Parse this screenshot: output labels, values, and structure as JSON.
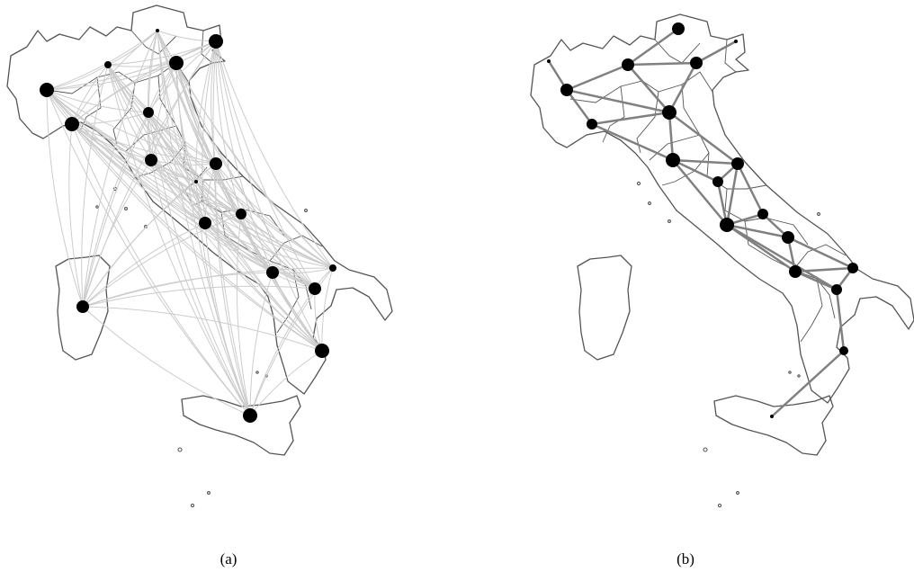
{
  "panels": [
    {
      "id": "a",
      "caption": "(a)"
    },
    {
      "id": "b",
      "caption": "(b)"
    }
  ],
  "colors": {
    "node": "#000000",
    "edge_complete": "#cccccc",
    "edge_network": "#808080",
    "map_outline": "#555555"
  }
}
